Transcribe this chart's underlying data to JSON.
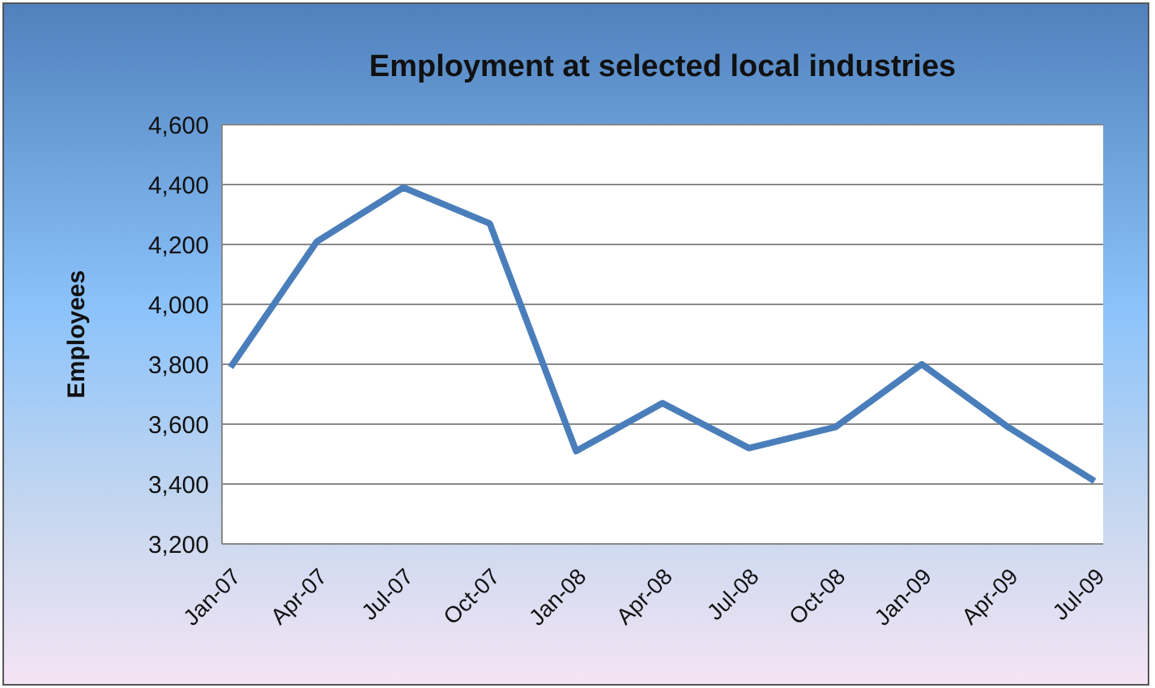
{
  "chart_data": {
    "type": "line",
    "title": "Employment at selected local industries",
    "ylabel": "Employees",
    "categories": [
      "Jan-07",
      "Apr-07",
      "Jul-07",
      "Oct-07",
      "Jan-08",
      "Apr-08",
      "Jul-08",
      "Oct-08",
      "Jan-09",
      "Apr-09",
      "Jul-09"
    ],
    "series": [
      {
        "color": "#4a7ebb",
        "values": [
          3790,
          4210,
          4390,
          4270,
          3510,
          3670,
          3520,
          3590,
          3800,
          3590,
          3410
        ]
      }
    ],
    "ylim": [
      3200,
      4600
    ],
    "yticks": [
      {
        "value": 3200,
        "label": "3,200"
      },
      {
        "value": 3400,
        "label": "3,400"
      },
      {
        "value": 3600,
        "label": "3,600"
      },
      {
        "value": 3800,
        "label": "3,800"
      },
      {
        "value": 4000,
        "label": "4,000"
      },
      {
        "value": 4200,
        "label": "4,200"
      },
      {
        "value": 4400,
        "label": "4,400"
      },
      {
        "value": 4600,
        "label": "4,600"
      }
    ],
    "grid": "y",
    "marker": "none",
    "line_style": "solid"
  }
}
